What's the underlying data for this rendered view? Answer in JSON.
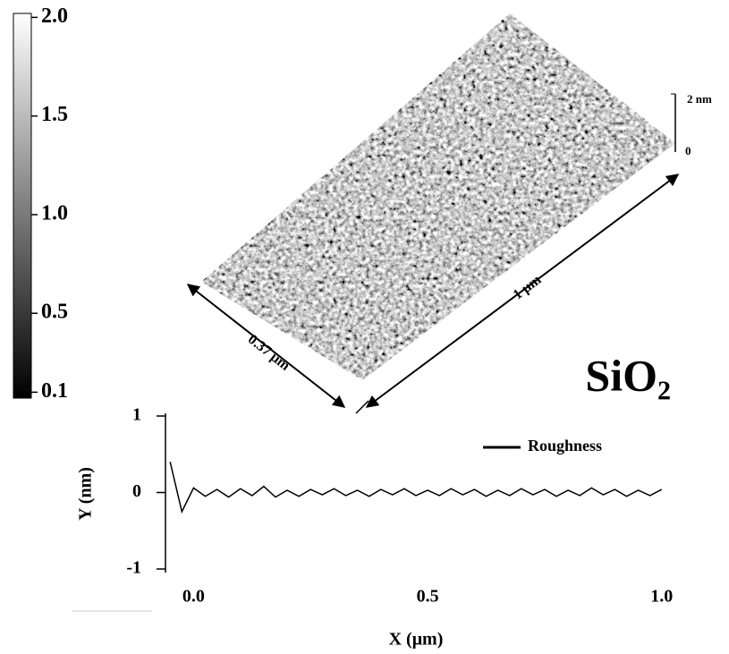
{
  "chart_data": [
    {
      "type": "colorbar",
      "clim": [
        0.07,
        2.02
      ],
      "ticks": [
        {
          "value": 2,
          "label": "2.0"
        },
        1.5,
        {
          "value": 1,
          "label": "1.0"
        },
        0.5,
        0.1
      ]
    },
    {
      "type": "surface",
      "title": "SiO₂",
      "z_scale_top": "2 nm",
      "z_scale_bottom": "0",
      "length_label": "1 μm",
      "width_label": "0.37 μm"
    },
    {
      "type": "line",
      "xlabel": "X (μm)",
      "ylabel": "Y (nm)",
      "xlim": [
        -0.06,
        1.01
      ],
      "ylim": [
        -1,
        1
      ],
      "xticks": [
        {
          "value": 0,
          "label": "0.0"
        },
        0.5,
        {
          "value": 1,
          "label": "1.0"
        }
      ],
      "yticks": [
        1,
        0,
        -1
      ],
      "legend": "upper right",
      "x": [
        -0.05,
        -0.025,
        0,
        0.025,
        0.05,
        0.075,
        0.1,
        0.125,
        0.15,
        0.175,
        0.2,
        0.225,
        0.25,
        0.275,
        0.3,
        0.325,
        0.35,
        0.375,
        0.4,
        0.425,
        0.45,
        0.475,
        0.5,
        0.525,
        0.55,
        0.575,
        0.6,
        0.625,
        0.65,
        0.675,
        0.7,
        0.725,
        0.75,
        0.775,
        0.8,
        0.825,
        0.85,
        0.875,
        0.9,
        0.925,
        0.95,
        0.975,
        1.0
      ],
      "series": [
        {
          "name": "Roughness",
          "color": "#000000",
          "values": [
            0.4,
            -0.25,
            0.06,
            -0.05,
            0.04,
            -0.06,
            0.05,
            -0.04,
            0.08,
            -0.06,
            0.03,
            -0.05,
            0.04,
            -0.03,
            0.05,
            -0.04,
            0.03,
            -0.05,
            0.04,
            -0.03,
            0.05,
            -0.04,
            0.03,
            -0.04,
            0.05,
            -0.03,
            0.04,
            -0.05,
            0.03,
            -0.04,
            0.05,
            -0.03,
            0.04,
            -0.05,
            0.03,
            -0.04,
            0.06,
            -0.03,
            0.04,
            -0.05,
            0.03,
            -0.04,
            0.04
          ]
        }
      ]
    }
  ]
}
